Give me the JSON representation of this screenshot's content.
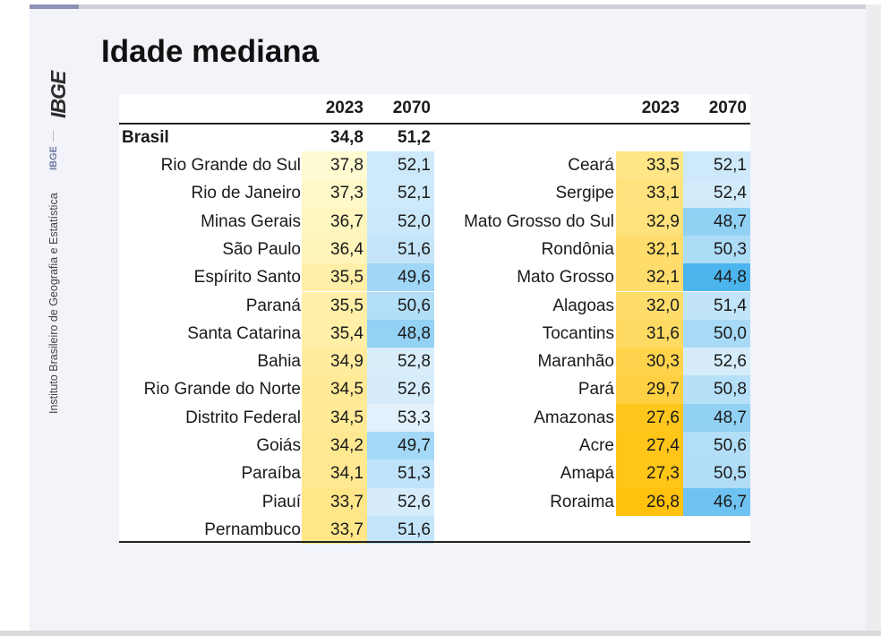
{
  "title": "Idade mediana",
  "sidebar": {
    "logo": "IBGE",
    "short": "IBGE",
    "institution": "Instituto Brasileiro de Geografia e Estatística"
  },
  "table": {
    "headers": [
      "2023",
      "2070"
    ],
    "brasil": {
      "name": "Brasil",
      "v2023": "34,8",
      "v2070": "51,2"
    },
    "left": [
      {
        "name": "Rio Grande do Sul",
        "v2023": "37,8",
        "v2070": "52,1"
      },
      {
        "name": "Rio de Janeiro",
        "v2023": "37,3",
        "v2070": "52,1"
      },
      {
        "name": "Minas Gerais",
        "v2023": "36,7",
        "v2070": "52,0"
      },
      {
        "name": "São Paulo",
        "v2023": "36,4",
        "v2070": "51,6"
      },
      {
        "name": "Espírito Santo",
        "v2023": "35,5",
        "v2070": "49,6"
      },
      {
        "name": "Paraná",
        "v2023": "35,5",
        "v2070": "50,6"
      },
      {
        "name": "Santa Catarina",
        "v2023": "35,4",
        "v2070": "48,8"
      },
      {
        "name": "Bahia",
        "v2023": "34,9",
        "v2070": "52,8"
      },
      {
        "name": "Rio Grande do Norte",
        "v2023": "34,5",
        "v2070": "52,6"
      },
      {
        "name": "Distrito Federal",
        "v2023": "34,5",
        "v2070": "53,3"
      },
      {
        "name": "Goiás",
        "v2023": "34,2",
        "v2070": "49,7"
      },
      {
        "name": "Paraíba",
        "v2023": "34,1",
        "v2070": "51,3"
      },
      {
        "name": "Piauí",
        "v2023": "33,7",
        "v2070": "52,6"
      },
      {
        "name": "Pernambuco",
        "v2023": "33,7",
        "v2070": "51,6"
      }
    ],
    "right": [
      {
        "name": "Ceará",
        "v2023": "33,5",
        "v2070": "52,1"
      },
      {
        "name": "Sergipe",
        "v2023": "33,1",
        "v2070": "52,4"
      },
      {
        "name": "Mato Grosso do Sul",
        "v2023": "32,9",
        "v2070": "48,7"
      },
      {
        "name": "Rondônia",
        "v2023": "32,1",
        "v2070": "50,3"
      },
      {
        "name": "Mato Grosso",
        "v2023": "32,1",
        "v2070": "44,8"
      },
      {
        "name": "Alagoas",
        "v2023": "32,0",
        "v2070": "51,4"
      },
      {
        "name": "Tocantins",
        "v2023": "31,6",
        "v2070": "50,0"
      },
      {
        "name": "Maranhão",
        "v2023": "30,3",
        "v2070": "52,6"
      },
      {
        "name": "Pará",
        "v2023": "29,7",
        "v2070": "50,8"
      },
      {
        "name": "Amazonas",
        "v2023": "27,6",
        "v2070": "48,7"
      },
      {
        "name": "Acre",
        "v2023": "27,4",
        "v2070": "50,6"
      },
      {
        "name": "Amapá",
        "v2023": "27,3",
        "v2070": "50,5"
      },
      {
        "name": "Roraima",
        "v2023": "26,8",
        "v2070": "46,7"
      }
    ]
  },
  "colors": {
    "scale2023_high": "#fffbd2",
    "scale2023_low": "#ffc20e",
    "scale2070_high": "#e2f1fc",
    "scale2070_low": "#4db5ee"
  }
}
